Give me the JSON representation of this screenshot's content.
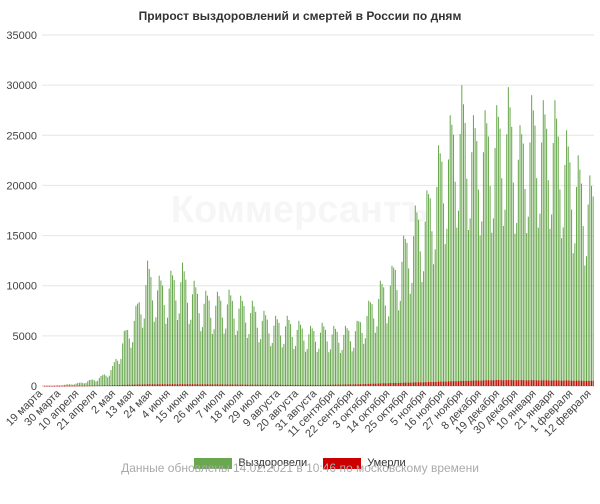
{
  "title": "Прирост выздоровлений и смертей в России по дням",
  "watermark": "Коммерсантъ",
  "footer_note": "Данные обновлены 14.02.2021 в 10:46 по московскому времени",
  "legend": [
    {
      "name": "Выздоровели",
      "color": "#6aa84f"
    },
    {
      "name": "Умерли",
      "color": "#cc0000"
    }
  ],
  "chart_data": {
    "type": "bar",
    "title": "Прирост выздоровлений и смертей в России по дням",
    "xlabel": "",
    "ylabel": "",
    "ylim": [
      0,
      35000
    ],
    "yticks": [
      0,
      5000,
      10000,
      15000,
      20000,
      25000,
      30000,
      35000
    ],
    "ytick_labels": [
      "0",
      "5000",
      "10000",
      "15000",
      "20000",
      "25000",
      "30000",
      "35000"
    ],
    "grid": true,
    "legend_position": "bottom",
    "date_range": [
      "2020-03-19",
      "2021-02-13"
    ],
    "xtick_labels": [
      "19 марта",
      "30 марта",
      "10 апреля",
      "21 апреля",
      "2 мая",
      "13 мая",
      "24 мая",
      "4 июня",
      "15 июня",
      "26 июня",
      "7 июля",
      "18 июля",
      "29 июля",
      "9 августа",
      "20 августа",
      "31 августа",
      "11 сентября",
      "22 сентября",
      "3 октября",
      "14 октября",
      "25 октября",
      "5 ноября",
      "16 ноября",
      "27 ноября",
      "8 декабря",
      "19 декабря",
      "30 декабря",
      "10 января",
      "21 января",
      "1 февраля",
      "12 февраля"
    ],
    "series": [
      {
        "name": "Выздоровели",
        "color": "#6aa84f",
        "weekly_pattern": "daily values fluctuate within each week; levels below are approximate weekly peak values read from the chart",
        "weekly_peaks": [
          [
            "2020-03-19",
            30
          ],
          [
            "2020-03-26",
            40
          ],
          [
            "2020-04-02",
            150
          ],
          [
            "2020-04-09",
            300
          ],
          [
            "2020-04-16",
            600
          ],
          [
            "2020-04-23",
            1000
          ],
          [
            "2020-04-30",
            2000
          ],
          [
            "2020-05-07",
            5500
          ],
          [
            "2020-05-14",
            8000
          ],
          [
            "2020-05-21",
            12500
          ],
          [
            "2020-05-28",
            11000
          ],
          [
            "2020-06-04",
            11500
          ],
          [
            "2020-06-11",
            12300
          ],
          [
            "2020-06-18",
            10500
          ],
          [
            "2020-06-25",
            9500
          ],
          [
            "2020-07-02",
            9400
          ],
          [
            "2020-07-09",
            9600
          ],
          [
            "2020-07-16",
            9000
          ],
          [
            "2020-07-23",
            8500
          ],
          [
            "2020-07-30",
            7500
          ],
          [
            "2020-08-06",
            7000
          ],
          [
            "2020-08-13",
            7000
          ],
          [
            "2020-08-20",
            6500
          ],
          [
            "2020-08-27",
            6000
          ],
          [
            "2020-09-03",
            6300
          ],
          [
            "2020-09-10",
            6000
          ],
          [
            "2020-09-17",
            6000
          ],
          [
            "2020-09-24",
            6500
          ],
          [
            "2020-10-01",
            8500
          ],
          [
            "2020-10-08",
            10500
          ],
          [
            "2020-10-15",
            12000
          ],
          [
            "2020-10-22",
            15000
          ],
          [
            "2020-10-29",
            18000
          ],
          [
            "2020-11-05",
            19500
          ],
          [
            "2020-11-12",
            24000
          ],
          [
            "2020-11-19",
            27000
          ],
          [
            "2020-11-26",
            30000
          ],
          [
            "2020-12-03",
            27000
          ],
          [
            "2020-12-10",
            27500
          ],
          [
            "2020-12-17",
            28000
          ],
          [
            "2020-12-24",
            29800
          ],
          [
            "2020-12-31",
            26000
          ],
          [
            "2021-01-07",
            29000
          ],
          [
            "2021-01-14",
            28500
          ],
          [
            "2021-01-21",
            28500
          ],
          [
            "2021-01-28",
            25500
          ],
          [
            "2021-02-04",
            23000
          ],
          [
            "2021-02-11",
            21000
          ]
        ]
      },
      {
        "name": "Умерли",
        "color": "#cc0000",
        "weekly_peaks": [
          [
            "2020-03-19",
            0
          ],
          [
            "2020-04-09",
            20
          ],
          [
            "2020-04-30",
            80
          ],
          [
            "2020-05-21",
            170
          ],
          [
            "2020-06-11",
            180
          ],
          [
            "2020-07-02",
            160
          ],
          [
            "2020-07-23",
            130
          ],
          [
            "2020-08-13",
            110
          ],
          [
            "2020-09-03",
            110
          ],
          [
            "2020-09-24",
            170
          ],
          [
            "2020-10-15",
            300
          ],
          [
            "2020-11-05",
            390
          ],
          [
            "2020-11-26",
            510
          ],
          [
            "2020-12-17",
            600
          ],
          [
            "2021-01-07",
            580
          ],
          [
            "2021-01-28",
            550
          ],
          [
            "2021-02-11",
            520
          ]
        ]
      }
    ]
  }
}
